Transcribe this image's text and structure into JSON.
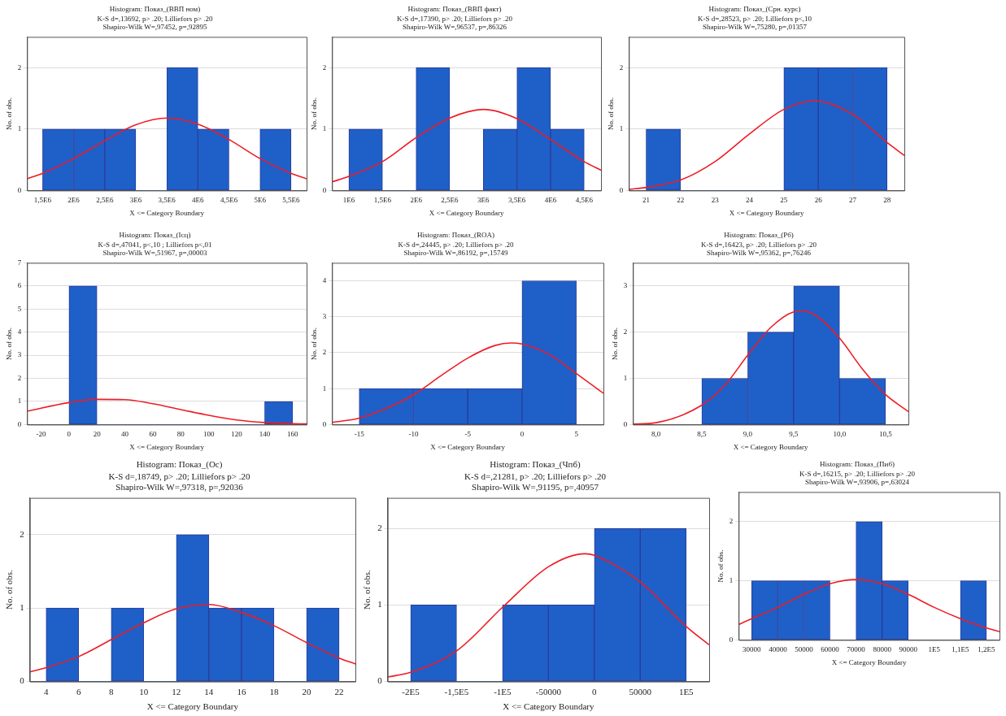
{
  "chart_data": [
    {
      "type": "histogram",
      "title": "Histogram: Показ_(ВВП ном)",
      "subtitle": "K-S d=,13692, p> .20; Lilliefors p> .20",
      "annotations": [
        "Shapiro-Wilk W=,97452, p=,92895"
      ],
      "xlabel": "X <= Category Boundary",
      "ylabel": "No. of obs.",
      "grid": "y",
      "color": "#1f5fc8",
      "bins": [
        1500000,
        2000000,
        2500000,
        3000000,
        3500000,
        4000000,
        4500000,
        5000000,
        5500000
      ],
      "values": [
        1,
        1,
        1,
        0,
        2,
        1,
        0,
        1
      ],
      "series": [
        {
          "type": "line",
          "color": "#ee1c25",
          "x": [
            1250000,
            1500000,
            2000000,
            2500000,
            3000000,
            3500000,
            4000000,
            4500000,
            5000000,
            5500000,
            5750000
          ],
          "values": [
            0.19,
            0.28,
            0.52,
            0.81,
            1.07,
            1.18,
            1.08,
            0.83,
            0.52,
            0.28,
            0.19
          ]
        }
      ],
      "xlim": [
        1250000,
        5750000
      ],
      "xticks": [
        {
          "value": 1500000,
          "label": "1,5E6"
        },
        {
          "value": 2000000,
          "label": "2E6"
        },
        {
          "value": 2500000,
          "label": "2,5E6"
        },
        {
          "value": 3000000,
          "label": "3E6"
        },
        {
          "value": 3500000,
          "label": "3,5E6"
        },
        {
          "value": 4000000,
          "label": "4E6"
        },
        {
          "value": 4500000,
          "label": "4,5E6"
        },
        {
          "value": 5000000,
          "label": "5E6"
        },
        {
          "value": 5500000,
          "label": "5,5E6"
        }
      ],
      "ylim": [
        0,
        2.5
      ],
      "yticks": [
        0,
        1,
        2
      ]
    },
    {
      "type": "histogram",
      "title": "Histogram: Показ_(ВВП факт)",
      "subtitle": "K-S d=,17390, p> .20; Lilliefors p> .20",
      "annotations": [
        "Shapiro-Wilk W=,96537, p=,86326"
      ],
      "xlabel": "X <= Category Boundary",
      "ylabel": "No. of obs.",
      "grid": "y",
      "color": "#1f5fc8",
      "bins": [
        1000000,
        1500000,
        2000000,
        2500000,
        3000000,
        3500000,
        4000000,
        4500000
      ],
      "values": [
        1,
        0,
        2,
        0,
        1,
        2,
        1
      ],
      "series": [
        {
          "type": "line",
          "color": "#ee1c25",
          "x": [
            750000,
            1000000,
            1500000,
            2000000,
            2500000,
            3000000,
            3500000,
            4000000,
            4500000,
            4750000
          ],
          "values": [
            0.14,
            0.23,
            0.47,
            0.86,
            1.18,
            1.32,
            1.17,
            0.83,
            0.47,
            0.33
          ]
        }
      ],
      "xlim": [
        750000,
        4750000
      ],
      "xticks": [
        {
          "value": 1000000,
          "label": "1E6"
        },
        {
          "value": 1500000,
          "label": "1,5E6"
        },
        {
          "value": 2000000,
          "label": "2E6"
        },
        {
          "value": 2500000,
          "label": "2,5E6"
        },
        {
          "value": 3000000,
          "label": "3E6"
        },
        {
          "value": 3500000,
          "label": "3,5E6"
        },
        {
          "value": 4000000,
          "label": "4E6"
        },
        {
          "value": 4500000,
          "label": "4,5E6"
        }
      ],
      "ylim": [
        0,
        2.5
      ],
      "yticks": [
        0,
        1,
        2
      ]
    },
    {
      "type": "histogram",
      "title": "Histogram: Показ_(Срн. курс)",
      "subtitle": "K-S d=,28523, p> .20; Lilliefors p<,10",
      "annotations": [
        "Shapiro-Wilk W=,75280, p=,01357"
      ],
      "xlabel": "X <= Category Boundary",
      "ylabel": "No. of obs.",
      "grid": "y",
      "color": "#1f5fc8",
      "bins": [
        21,
        22,
        23,
        24,
        25,
        26,
        27,
        28
      ],
      "values": [
        1,
        0,
        0,
        0,
        2,
        2,
        2
      ],
      "series": [
        {
          "type": "line",
          "color": "#ee1c25",
          "x": [
            20.5,
            21,
            22,
            23,
            24,
            25,
            25.9,
            27,
            28,
            28.5
          ],
          "values": [
            0.02,
            0.05,
            0.17,
            0.47,
            0.92,
            1.32,
            1.46,
            1.24,
            0.78,
            0.57
          ]
        }
      ],
      "xlim": [
        20.5,
        28.5
      ],
      "xticks": [
        21,
        22,
        23,
        24,
        25,
        26,
        27,
        28
      ],
      "ylim": [
        0,
        2.5
      ],
      "yticks": [
        0,
        1,
        2
      ]
    },
    {
      "type": "histogram",
      "title": "Histogram: Показ_(Ісц)",
      "subtitle": "K-S d=,47041, p<,10 ; Lilliefors p<,01",
      "annotations": [
        "Shapiro-Wilk W=,51967, p=,00003"
      ],
      "xlabel": "X <= Category Boundary",
      "ylabel": "No. of obs.",
      "grid": "y",
      "color": "#1f5fc8",
      "bins": [
        0,
        20,
        40,
        60,
        80,
        100,
        120,
        140,
        160
      ],
      "values": [
        6,
        0,
        0,
        0,
        0,
        0,
        0,
        1
      ],
      "series": [
        {
          "type": "line",
          "color": "#ee1c25",
          "x": [
            -30,
            0,
            20,
            40,
            60,
            80,
            100,
            120,
            140,
            160,
            170
          ],
          "values": [
            0.58,
            0.95,
            1.09,
            1.08,
            0.9,
            0.65,
            0.4,
            0.2,
            0.09,
            0.04,
            0.03
          ]
        }
      ],
      "xlim": [
        -30,
        170
      ],
      "xticks": [
        -20,
        0,
        20,
        40,
        60,
        80,
        100,
        120,
        140,
        160
      ],
      "ylim": [
        0,
        7
      ],
      "yticks": [
        0,
        1,
        2,
        3,
        4,
        5,
        6,
        7
      ]
    },
    {
      "type": "histogram",
      "title": "Histogram: Показ_(ROA)",
      "subtitle": "K-S d=,24445, p> .20; Lilliefors p> .20",
      "annotations": [
        "Shapiro-Wilk W=,86192, p=,15749"
      ],
      "xlabel": "X <= Category Boundary",
      "ylabel": "No. of obs.",
      "grid": "y",
      "color": "#1f5fc8",
      "bins": [
        -15,
        -10,
        -5,
        0,
        5
      ],
      "values": [
        1,
        1,
        1,
        4
      ],
      "series": [
        {
          "type": "line",
          "color": "#ee1c25",
          "x": [
            -17.5,
            -15,
            -12.5,
            -10,
            -7.5,
            -5,
            -2.5,
            -1,
            0,
            2.5,
            5,
            7.5
          ],
          "values": [
            0.06,
            0.18,
            0.45,
            0.83,
            1.35,
            1.85,
            2.2,
            2.27,
            2.24,
            1.95,
            1.42,
            0.87
          ]
        }
      ],
      "xlim": [
        -17.5,
        7.5
      ],
      "xticks": [
        -15,
        -10,
        -5,
        0,
        5
      ],
      "ylim": [
        0,
        4.5
      ],
      "yticks": [
        0,
        1,
        2,
        3,
        4
      ]
    },
    {
      "type": "histogram",
      "title": "Histogram: Показ_(Рб)",
      "subtitle": "K-S d=,16423, p> .20; Lilliefors p> .20",
      "annotations": [
        "Shapiro-Wilk W=,95362, p=,76246"
      ],
      "xlabel": "X <= Category Boundary",
      "ylabel": "No. of obs.",
      "grid": "y",
      "color": "#1f5fc8",
      "bins": [
        8.5,
        9,
        9.5,
        10,
        10.5
      ],
      "values": [
        1,
        2,
        3,
        1
      ],
      "series": [
        {
          "type": "line",
          "color": "#ee1c25",
          "x": [
            7.75,
            8,
            8.5,
            8.75,
            9,
            9.25,
            9.5,
            9.6,
            9.75,
            10,
            10.25,
            10.5,
            10.75
          ],
          "values": [
            0.01,
            0.04,
            0.42,
            0.85,
            1.5,
            2.1,
            2.44,
            2.46,
            2.35,
            1.87,
            1.2,
            0.65,
            0.28
          ]
        }
      ],
      "xlim": [
        7.75,
        10.75
      ],
      "xticks": [
        {
          "value": 8,
          "label": "8,0"
        },
        {
          "value": 8.5,
          "label": "8,5"
        },
        {
          "value": 9,
          "label": "9,0"
        },
        {
          "value": 9.5,
          "label": "9,5"
        },
        {
          "value": 10,
          "label": "10,0"
        },
        {
          "value": 10.5,
          "label": "10,5"
        }
      ],
      "ylim": [
        0,
        3.5
      ],
      "yticks": [
        0,
        1,
        2,
        3
      ]
    },
    {
      "type": "histogram",
      "title": "Histogram: Показ_(Ос)",
      "subtitle": "K-S d=,18749, p> .20; Lilliefors p> .20",
      "annotations": [
        "Shapiro-Wilk W=,97318, p=,92036"
      ],
      "xlabel": "X <= Category Boundary",
      "ylabel": "No. of obs.",
      "grid": "y",
      "color": "#1f5fc8",
      "bins": [
        4,
        6,
        8,
        10,
        12,
        14,
        16,
        18,
        20,
        22
      ],
      "values": [
        1,
        0,
        1,
        0,
        2,
        1,
        1,
        0,
        1
      ],
      "series": [
        {
          "type": "line",
          "color": "#ee1c25",
          "x": [
            3,
            4,
            6,
            8,
            10,
            12,
            14,
            16,
            18,
            20,
            22,
            23
          ],
          "values": [
            0.13,
            0.19,
            0.34,
            0.57,
            0.8,
            0.99,
            1.05,
            0.94,
            0.76,
            0.53,
            0.32,
            0.24
          ]
        }
      ],
      "xlim": [
        3,
        23
      ],
      "xticks": [
        4,
        6,
        8,
        10,
        12,
        14,
        16,
        18,
        20,
        22
      ],
      "ylim": [
        0,
        2.5
      ],
      "yticks": [
        0,
        1,
        2
      ]
    },
    {
      "type": "histogram",
      "title": "Histogram: Показ_(Чпб)",
      "subtitle": "K-S d=,21281, p> .20; Lilliefors p> .20",
      "annotations": [
        "Shapiro-Wilk W=,91195, p=,40957"
      ],
      "xlabel": "X <= Category Boundary",
      "ylabel": "No. of obs.",
      "grid": "y",
      "color": "#1f5fc8",
      "bins": [
        -200000,
        -150000,
        -100000,
        -50000,
        0,
        50000,
        100000
      ],
      "values": [
        1,
        0,
        1,
        1,
        2,
        2
      ],
      "series": [
        {
          "type": "line",
          "color": "#ee1c25",
          "x": [
            -225000,
            -200000,
            -150000,
            -100000,
            -50000,
            -10000,
            0,
            50000,
            100000,
            125000
          ],
          "values": [
            0.06,
            0.12,
            0.4,
            0.97,
            1.5,
            1.67,
            1.65,
            1.3,
            0.72,
            0.48
          ]
        }
      ],
      "xlim": [
        -225000,
        125000
      ],
      "xticks": [
        {
          "value": -200000,
          "label": "-2E5"
        },
        {
          "value": -150000,
          "label": "-1,5E5"
        },
        {
          "value": -100000,
          "label": "-1E5"
        },
        -50000,
        0,
        50000,
        {
          "value": 100000,
          "label": "1E5"
        }
      ],
      "ylim": [
        0,
        2.4
      ],
      "yticks": [
        0,
        1,
        2
      ]
    },
    {
      "type": "histogram",
      "title": "Histogram: Показ_(Пиб)",
      "subtitle": "K-S d=,16215, p> .20; Lilliefors p> .20",
      "annotations": [
        "Shapiro-Wilk W=,93906, p=,63024"
      ],
      "xlabel": "X <= Category Boundary",
      "ylabel": "No. of obs.",
      "grid": "y",
      "color": "#1f5fc8",
      "bins": [
        30000,
        40000,
        50000,
        60000,
        70000,
        80000,
        90000,
        100000,
        110000,
        120000
      ],
      "values": [
        1,
        1,
        1,
        0,
        2,
        1,
        0,
        0,
        1
      ],
      "series": [
        {
          "type": "line",
          "color": "#ee1c25",
          "x": [
            25000,
            30000,
            40000,
            50000,
            60000,
            70000,
            80000,
            90000,
            100000,
            110000,
            120000,
            125000
          ],
          "values": [
            0.26,
            0.36,
            0.55,
            0.77,
            0.95,
            1.02,
            0.95,
            0.77,
            0.55,
            0.36,
            0.2,
            0.14
          ]
        }
      ],
      "xlim": [
        25000,
        125000
      ],
      "xticks": [
        30000,
        40000,
        50000,
        60000,
        70000,
        80000,
        90000,
        {
          "value": 100000,
          "label": "1E5"
        },
        {
          "value": 110000,
          "label": "1,1E5"
        },
        {
          "value": 120000,
          "label": "1,2E5"
        }
      ],
      "ylim": [
        0,
        2.5
      ],
      "yticks": [
        0,
        1,
        2
      ]
    }
  ]
}
